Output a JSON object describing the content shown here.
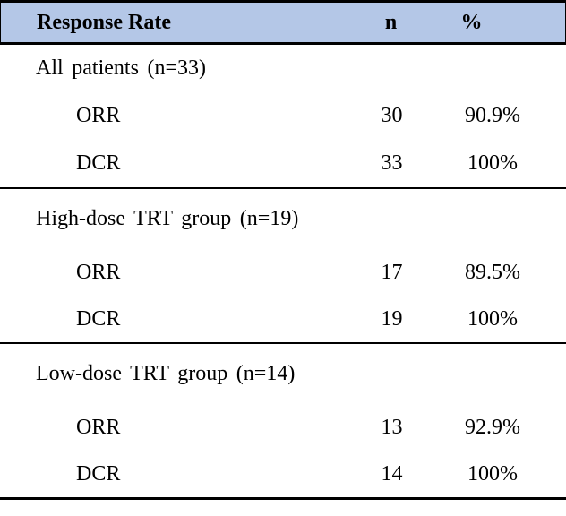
{
  "table": {
    "header": {
      "col1": "Response Rate",
      "col2": "n",
      "col3": "%"
    },
    "sections": [
      {
        "group_label": "All patients (n=33)",
        "rows": [
          {
            "label": "ORR",
            "n": "30",
            "pct": "90.9%"
          },
          {
            "label": "DCR",
            "n": "33",
            "pct": "100%"
          }
        ]
      },
      {
        "group_label": "High-dose TRT group (n=19)",
        "rows": [
          {
            "label": "ORR",
            "n": "17",
            "pct": "89.5%"
          },
          {
            "label": "DCR",
            "n": "19",
            "pct": "100%"
          }
        ]
      },
      {
        "group_label": "Low-dose TRT group (n=14)",
        "rows": [
          {
            "label": "ORR",
            "n": "13",
            "pct": "92.9%"
          },
          {
            "label": "DCR",
            "n": "14",
            "pct": "100%"
          }
        ]
      }
    ],
    "colors": {
      "header_bg": "#b4c7e7",
      "border": "#000000"
    }
  },
  "chart_data": {
    "type": "table",
    "title": "Response Rate",
    "columns": [
      "Response Rate",
      "n",
      "%"
    ],
    "rows": [
      [
        "All patients (n=33)",
        "",
        ""
      ],
      [
        "ORR",
        30,
        "90.9%"
      ],
      [
        "DCR",
        33,
        "100%"
      ],
      [
        "High-dose TRT group (n=19)",
        "",
        ""
      ],
      [
        "ORR",
        17,
        "89.5%"
      ],
      [
        "DCR",
        19,
        "100%"
      ],
      [
        "Low-dose TRT group (n=14)",
        "",
        ""
      ],
      [
        "ORR",
        13,
        "92.9%"
      ],
      [
        "DCR",
        14,
        "100%"
      ]
    ]
  }
}
